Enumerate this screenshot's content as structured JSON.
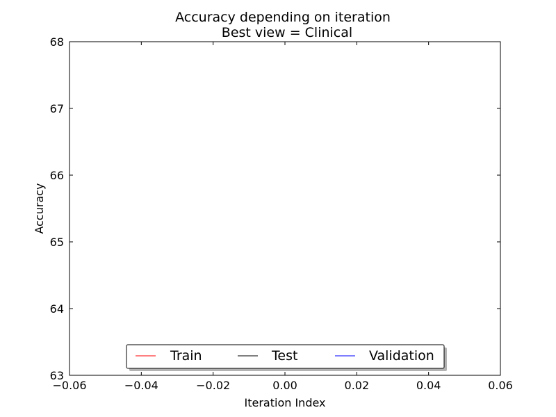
{
  "chart_data": {
    "type": "line",
    "title": "Accuracy depending on iteration",
    "subtitle": "Best view = Clinical",
    "xlabel": "Iteration Index",
    "ylabel": "Accuracy",
    "xlim": [
      -0.06,
      0.06
    ],
    "ylim": [
      63,
      68
    ],
    "xticks": [
      "−0.06",
      "−0.04",
      "−0.02",
      "0.00",
      "0.02",
      "0.04",
      "0.06"
    ],
    "yticks": [
      "63",
      "64",
      "65",
      "66",
      "67",
      "68"
    ],
    "grid": false,
    "legend_position": "bottom-center",
    "series": [
      {
        "name": "Train",
        "color": "#ff0000",
        "x": [],
        "y": []
      },
      {
        "name": "Test",
        "color": "#000000",
        "x": [],
        "y": []
      },
      {
        "name": "Validation",
        "color": "#0000ff",
        "x": [],
        "y": []
      }
    ]
  }
}
